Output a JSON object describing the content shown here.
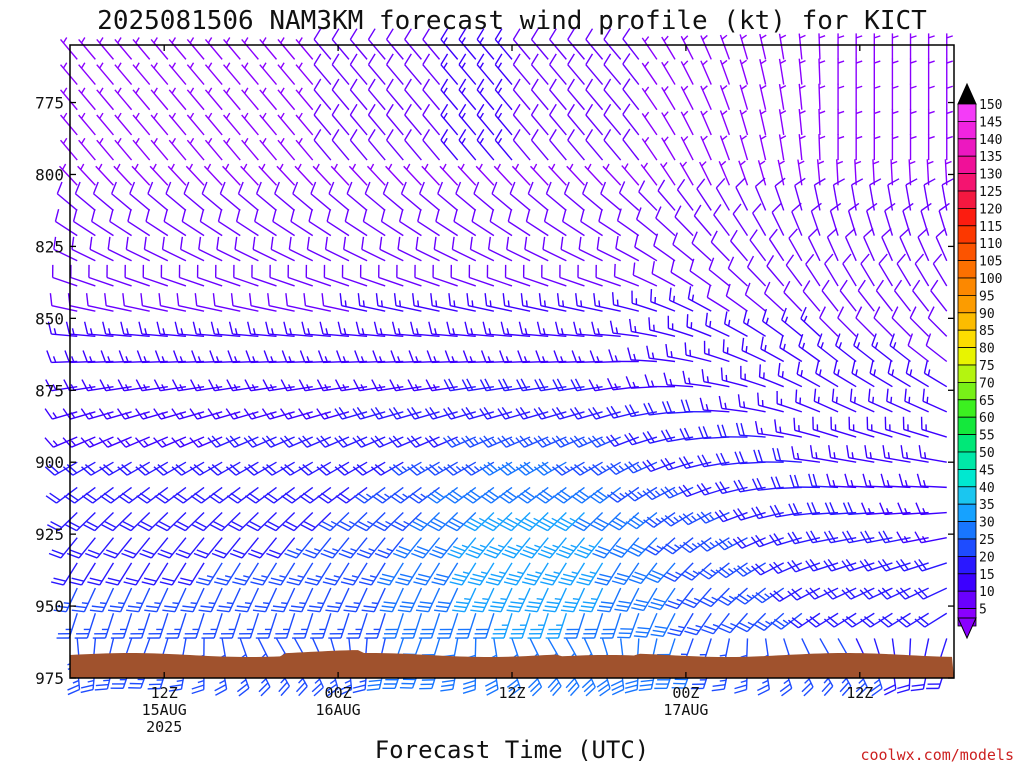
{
  "chart_data": {
    "type": "wind-barb time-height profile",
    "title": "2025081506 NAM3KM forecast wind profile (kt) for KICT",
    "xlabel": "Forecast Time (UTC)",
    "ylabel": "",
    "y_ticks": [
      775,
      800,
      825,
      850,
      875,
      900,
      925,
      950,
      975
    ],
    "y_range_hPa": [
      755,
      975
    ],
    "x_ticks": [
      {
        "line1": "12Z",
        "line2": "15AUG",
        "line3": "2025",
        "hours_from_init": 6
      },
      {
        "line1": "00Z",
        "line2": "16AUG",
        "line3": "",
        "hours_from_init": 18
      },
      {
        "line1": "12Z",
        "line2": "",
        "line3": "",
        "hours_from_init": 30
      },
      {
        "line1": "00Z",
        "line2": "17AUG",
        "line3": "",
        "hours_from_init": 42
      },
      {
        "line1": "12Z",
        "line2": "",
        "line3": "",
        "hours_from_init": 54
      }
    ],
    "x_range_hours_from_init": [
      -0.5,
      60.5
    ],
    "colorbar_values": [
      5,
      10,
      15,
      20,
      25,
      30,
      35,
      40,
      45,
      50,
      55,
      60,
      65,
      70,
      75,
      80,
      85,
      90,
      95,
      100,
      105,
      110,
      115,
      120,
      125,
      130,
      135,
      140,
      145,
      150
    ],
    "colorbar_colors": [
      "#8a00ff",
      "#6a00ff",
      "#3c00ff",
      "#2a18ff",
      "#1e4cff",
      "#1876ff",
      "#16a2ff",
      "#1ac6f0",
      "#00e8d0",
      "#00e8a8",
      "#00e878",
      "#14e83c",
      "#3cf020",
      "#78f018",
      "#b4f410",
      "#e8f400",
      "#fcdc00",
      "#fcbc00",
      "#fc9c00",
      "#fc8800",
      "#fc7000",
      "#fc5400",
      "#fc3800",
      "#fc1c10",
      "#f41840",
      "#f41470",
      "#f01098",
      "#ec18c0",
      "#f024e0",
      "#f43cf8"
    ],
    "wind_barbs_summary": "Light northwesterly winds (5-15 kt) near 760-800 hPa early in the period; southerly to southwesterly low-level flow of 20-35 kt below 900 hPa, strongest around 925 hPa near 18Z 16AUG; winds veer to westerly aloft and weaken late on 17AUG.",
    "terrain_color": "#a0522d"
  },
  "credit": "coolwx.com/models"
}
